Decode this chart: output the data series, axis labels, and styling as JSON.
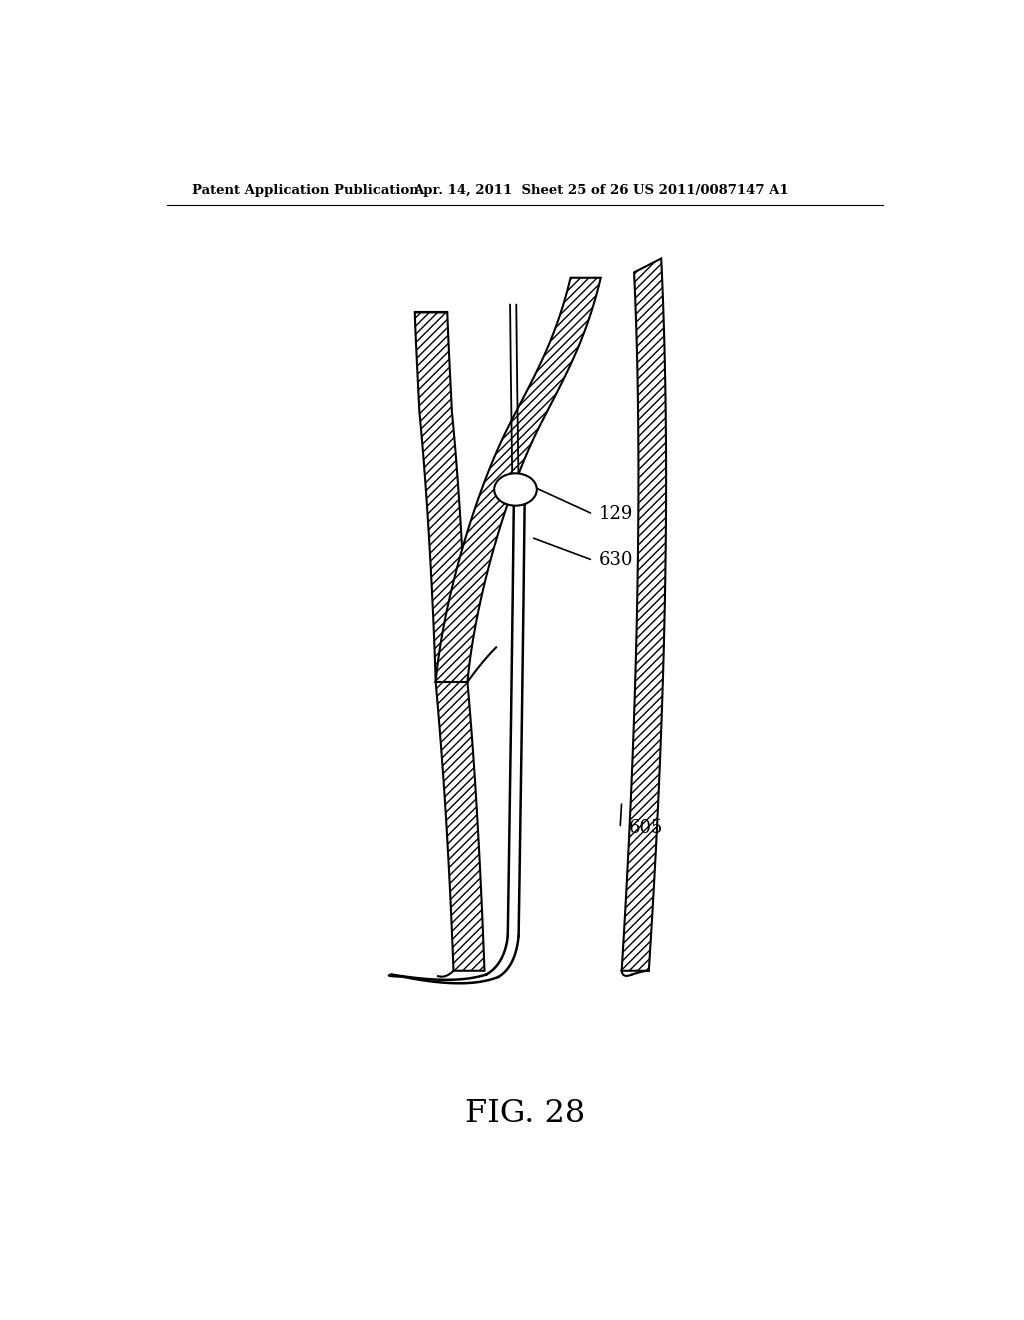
{
  "background_color": "#ffffff",
  "header_left": "Patent Application Publication",
  "header_mid": "Apr. 14, 2011  Sheet 25 of 26",
  "header_right": "US 2011/0087147 A1",
  "fig_label": "FIG. 28",
  "label_129": "129",
  "label_630": "630",
  "label_605": "605",
  "line_color": "#000000",
  "fig_w": 1024,
  "fig_h": 1320
}
